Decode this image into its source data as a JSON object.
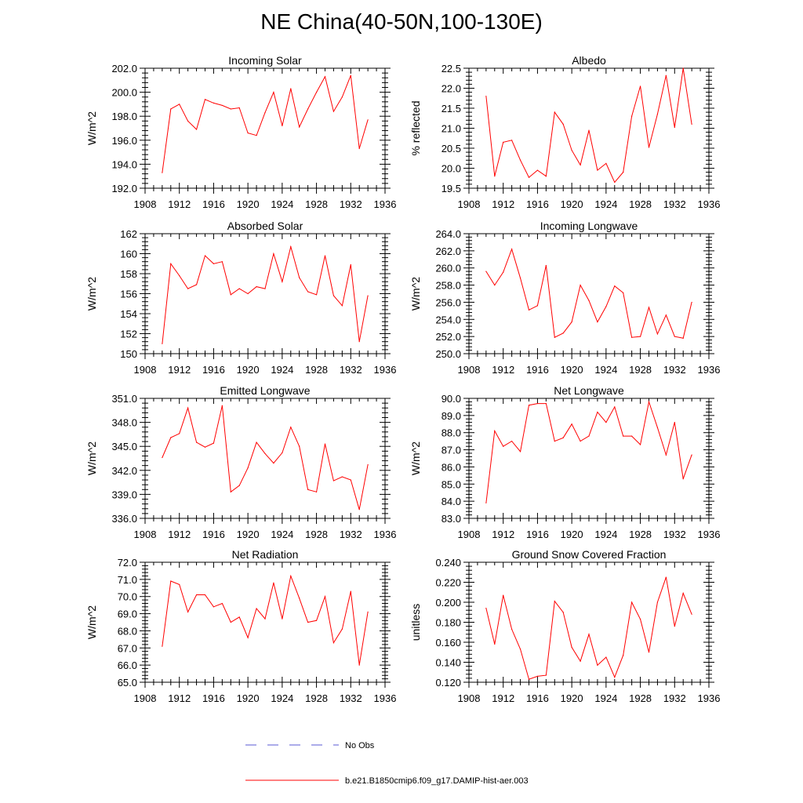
{
  "title": "NE China(40-50N,100-130E)",
  "colors": {
    "model": "#ff0000",
    "obs": "#5a5ad6",
    "axis": "#000000"
  },
  "legend": [
    {
      "label": "No Obs",
      "style": "dashed",
      "color": "#5a5ad6"
    },
    {
      "label": "b.e21.B1850cmip6.f09_g17.DAMIP-hist-aer.003",
      "style": "solid",
      "color": "#ff0000"
    }
  ],
  "chart_data": [
    {
      "type": "line",
      "title": "Incoming Solar",
      "ylabel": "W/m^2",
      "xlim": [
        1908,
        1936
      ],
      "x_ticks": [
        "1908",
        "1912",
        "1916",
        "1920",
        "1924",
        "1928",
        "1932",
        "1936"
      ],
      "ylim": [
        192,
        202
      ],
      "y_ticks": [
        "192.0",
        "194.0",
        "196.0",
        "198.0",
        "200.0",
        "202.0"
      ],
      "series": [
        {
          "x": [
            1910,
            1911,
            1912,
            1913,
            1914,
            1915,
            1916,
            1917,
            1918,
            1919,
            1920,
            1921,
            1922,
            1923,
            1924,
            1925,
            1926,
            1927,
            1928,
            1929,
            1930,
            1931,
            1932,
            1933,
            1934
          ],
          "values": [
            193.3,
            198.6,
            199.0,
            197.6,
            196.9,
            199.4,
            199.1,
            198.9,
            198.6,
            198.7,
            196.6,
            196.4,
            198.3,
            200.0,
            197.2,
            200.3,
            197.1,
            198.6,
            200.0,
            201.3,
            198.4,
            199.6,
            201.4,
            195.3,
            197.7
          ]
        }
      ]
    },
    {
      "type": "line",
      "title": "Albedo",
      "ylabel": "% reflected",
      "xlim": [
        1908,
        1936
      ],
      "x_ticks": [
        "1908",
        "1912",
        "1916",
        "1920",
        "1924",
        "1928",
        "1932",
        "1936"
      ],
      "ylim": [
        19.5,
        22.5
      ],
      "y_ticks": [
        "19.5",
        "20.0",
        "20.5",
        "21.0",
        "21.5",
        "22.0",
        "22.5"
      ],
      "series": [
        {
          "x": [
            1910,
            1911,
            1912,
            1913,
            1914,
            1915,
            1916,
            1917,
            1918,
            1919,
            1920,
            1921,
            1922,
            1923,
            1924,
            1925,
            1926,
            1927,
            1928,
            1929,
            1930,
            1931,
            1932,
            1933,
            1934
          ],
          "values": [
            21.8,
            19.8,
            20.65,
            20.7,
            20.2,
            19.77,
            19.95,
            19.8,
            21.4,
            21.1,
            20.45,
            20.08,
            20.95,
            19.95,
            20.12,
            19.65,
            19.9,
            21.3,
            22.05,
            20.52,
            21.35,
            22.32,
            21.02,
            22.5,
            21.1
          ]
        }
      ]
    },
    {
      "type": "line",
      "title": "Absorbed Solar",
      "ylabel": "W/m^2",
      "xlim": [
        1908,
        1936
      ],
      "x_ticks": [
        "1908",
        "1912",
        "1916",
        "1920",
        "1924",
        "1928",
        "1932",
        "1936"
      ],
      "ylim": [
        150,
        162
      ],
      "y_ticks": [
        "150",
        "152",
        "154",
        "156",
        "158",
        "160",
        "162"
      ],
      "series": [
        {
          "x": [
            1910,
            1911,
            1912,
            1913,
            1914,
            1915,
            1916,
            1917,
            1918,
            1919,
            1920,
            1921,
            1922,
            1923,
            1924,
            1925,
            1926,
            1927,
            1928,
            1929,
            1930,
            1931,
            1932,
            1933,
            1934
          ],
          "values": [
            151.0,
            159.0,
            157.8,
            156.5,
            156.9,
            159.8,
            159.0,
            159.2,
            155.9,
            156.5,
            156.0,
            156.7,
            156.5,
            160.0,
            157.2,
            160.7,
            157.6,
            156.2,
            155.9,
            159.8,
            155.8,
            154.8,
            158.9,
            151.2,
            155.8
          ]
        }
      ]
    },
    {
      "type": "line",
      "title": "Incoming Longwave",
      "ylabel": "W/m^2",
      "xlim": [
        1908,
        1936
      ],
      "x_ticks": [
        "1908",
        "1912",
        "1916",
        "1920",
        "1924",
        "1928",
        "1932",
        "1936"
      ],
      "ylim": [
        250,
        264
      ],
      "y_ticks": [
        "250.0",
        "252.0",
        "254.0",
        "256.0",
        "258.0",
        "260.0",
        "262.0",
        "264.0"
      ],
      "series": [
        {
          "x": [
            1910,
            1911,
            1912,
            1913,
            1914,
            1915,
            1916,
            1917,
            1918,
            1919,
            1920,
            1921,
            1922,
            1923,
            1924,
            1925,
            1926,
            1927,
            1928,
            1929,
            1930,
            1931,
            1932,
            1933,
            1934
          ],
          "values": [
            259.6,
            258.0,
            259.5,
            262.2,
            258.8,
            255.1,
            255.6,
            260.3,
            251.9,
            252.4,
            253.7,
            258.0,
            256.2,
            253.7,
            255.5,
            257.9,
            257.1,
            251.9,
            252.0,
            255.4,
            252.3,
            254.5,
            252.0,
            251.8,
            256.0
          ]
        }
      ]
    },
    {
      "type": "line",
      "title": "Emitted Longwave",
      "ylabel": "W/m^2",
      "xlim": [
        1908,
        1936
      ],
      "x_ticks": [
        "1908",
        "1912",
        "1916",
        "1920",
        "1924",
        "1928",
        "1932",
        "1936"
      ],
      "ylim": [
        336,
        351
      ],
      "y_ticks": [
        "336.0",
        "339.0",
        "342.0",
        "345.0",
        "348.0",
        "351.0"
      ],
      "series": [
        {
          "x": [
            1910,
            1911,
            1912,
            1913,
            1914,
            1915,
            1916,
            1917,
            1918,
            1919,
            1920,
            1921,
            1922,
            1923,
            1924,
            1925,
            1926,
            1927,
            1928,
            1929,
            1930,
            1931,
            1932,
            1933,
            1934
          ],
          "values": [
            343.6,
            346.1,
            346.6,
            349.8,
            345.5,
            344.9,
            345.4,
            350.1,
            339.3,
            340.1,
            342.3,
            345.5,
            344.1,
            342.9,
            344.2,
            347.4,
            345.0,
            339.6,
            339.3,
            345.3,
            340.7,
            341.2,
            340.8,
            337.1,
            342.7
          ]
        }
      ]
    },
    {
      "type": "line",
      "title": "Net Longwave",
      "ylabel": "W/m^2",
      "xlim": [
        1908,
        1936
      ],
      "x_ticks": [
        "1908",
        "1912",
        "1916",
        "1920",
        "1924",
        "1928",
        "1932",
        "1936"
      ],
      "ylim": [
        83,
        90
      ],
      "y_ticks": [
        "83.0",
        "84.0",
        "85.0",
        "86.0",
        "87.0",
        "88.0",
        "89.0",
        "90.0"
      ],
      "series": [
        {
          "x": [
            1910,
            1911,
            1912,
            1913,
            1914,
            1915,
            1916,
            1917,
            1918,
            1919,
            1920,
            1921,
            1922,
            1923,
            1924,
            1925,
            1926,
            1927,
            1928,
            1929,
            1930,
            1931,
            1932,
            1933,
            1934
          ],
          "values": [
            83.9,
            88.1,
            87.2,
            87.5,
            86.9,
            89.6,
            89.7,
            89.7,
            87.5,
            87.7,
            88.5,
            87.5,
            87.8,
            89.2,
            88.6,
            89.5,
            87.8,
            87.8,
            87.3,
            89.8,
            88.3,
            86.7,
            88.6,
            85.3,
            86.7
          ]
        }
      ]
    },
    {
      "type": "line",
      "title": "Net Radiation",
      "ylabel": "W/m^2",
      "xlim": [
        1908,
        1936
      ],
      "x_ticks": [
        "1908",
        "1912",
        "1916",
        "1920",
        "1924",
        "1928",
        "1932",
        "1936"
      ],
      "ylim": [
        65,
        72
      ],
      "y_ticks": [
        "65.0",
        "66.0",
        "67.0",
        "68.0",
        "69.0",
        "70.0",
        "71.0",
        "72.0"
      ],
      "series": [
        {
          "x": [
            1910,
            1911,
            1912,
            1913,
            1914,
            1915,
            1916,
            1917,
            1918,
            1919,
            1920,
            1921,
            1922,
            1923,
            1924,
            1925,
            1926,
            1927,
            1928,
            1929,
            1930,
            1931,
            1932,
            1933,
            1934
          ],
          "values": [
            67.1,
            70.9,
            70.7,
            69.1,
            70.1,
            70.1,
            69.4,
            69.6,
            68.5,
            68.8,
            67.6,
            69.3,
            68.7,
            70.8,
            68.7,
            71.2,
            69.9,
            68.5,
            68.6,
            70.0,
            67.3,
            68.1,
            70.3,
            66.0,
            69.1
          ]
        }
      ]
    },
    {
      "type": "line",
      "title": "Ground Snow Covered Fraction",
      "ylabel": "unitless",
      "xlim": [
        1908,
        1936
      ],
      "x_ticks": [
        "1908",
        "1912",
        "1916",
        "1920",
        "1924",
        "1928",
        "1932",
        "1936"
      ],
      "ylim": [
        0.12,
        0.24
      ],
      "y_ticks": [
        "0.120",
        "0.140",
        "0.160",
        "0.180",
        "0.200",
        "0.220",
        "0.240"
      ],
      "series": [
        {
          "x": [
            1910,
            1911,
            1912,
            1913,
            1914,
            1915,
            1916,
            1917,
            1918,
            1919,
            1920,
            1921,
            1922,
            1923,
            1924,
            1925,
            1926,
            1927,
            1928,
            1929,
            1930,
            1931,
            1932,
            1933,
            1934
          ],
          "values": [
            0.194,
            0.158,
            0.207,
            0.173,
            0.153,
            0.123,
            0.126,
            0.127,
            0.201,
            0.19,
            0.155,
            0.141,
            0.168,
            0.137,
            0.145,
            0.125,
            0.147,
            0.2,
            0.183,
            0.15,
            0.2,
            0.225,
            0.176,
            0.209,
            0.188
          ]
        }
      ]
    }
  ]
}
